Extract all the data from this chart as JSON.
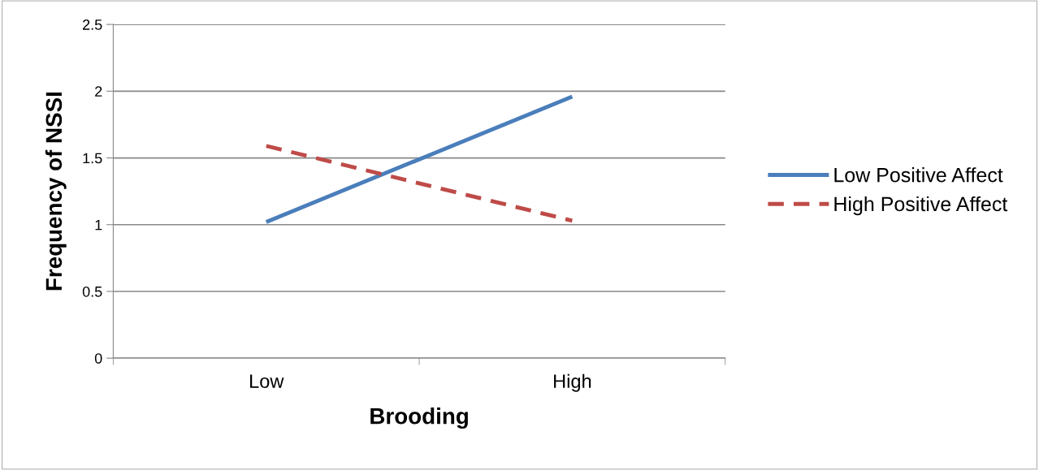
{
  "chart_data": {
    "type": "line",
    "xlabel": "Brooding",
    "ylabel": "Frequency of NSSI",
    "categories": [
      "Low",
      "High"
    ],
    "series": [
      {
        "name": "Low Positive Affect",
        "color": "#4a7ebb",
        "values": [
          1.02,
          1.96
        ],
        "line_style": "solid"
      },
      {
        "name": "High Positive Affect",
        "color": "#be4b48",
        "values": [
          1.59,
          1.03
        ],
        "line_style": "dashed"
      }
    ],
    "ylim": [
      0,
      2.5
    ],
    "yticks": [
      0,
      0.5,
      1,
      1.5,
      2,
      2.5
    ],
    "grid": "y",
    "legend": "right",
    "marker": "none"
  }
}
